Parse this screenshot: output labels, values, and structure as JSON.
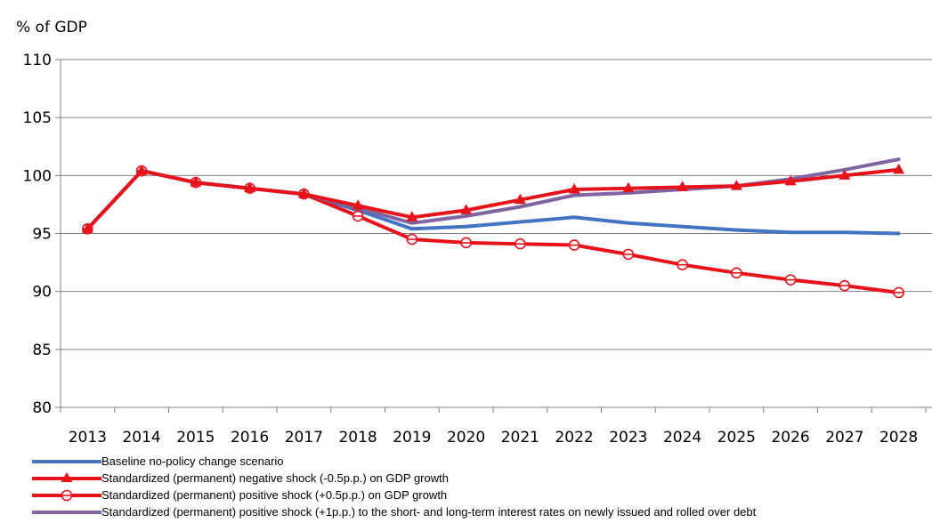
{
  "chart_data": {
    "type": "line",
    "ylabel": "% of GDP",
    "ylim": [
      80,
      110
    ],
    "yticks": [
      "80",
      "85",
      "90",
      "95",
      "100",
      "105",
      "110"
    ],
    "categories": [
      "2013",
      "2014",
      "2015",
      "2016",
      "2017",
      "2018",
      "2019",
      "2020",
      "2021",
      "2022",
      "2023",
      "2024",
      "2025",
      "2026",
      "2027",
      "2028"
    ],
    "grid": "horizontal",
    "legend_position": "bottom",
    "series": [
      {
        "name": "Baseline no-policy change scenario",
        "color": "#4472C4",
        "marker": "none",
        "values": [
          95.4,
          100.4,
          99.4,
          98.9,
          98.4,
          97.0,
          95.4,
          95.6,
          96.0,
          96.4,
          95.9,
          95.6,
          95.3,
          95.1,
          95.1,
          95.0
        ]
      },
      {
        "name": "Standardized (permanent) negative shock (-0.5p.p.) on GDP growth",
        "color": "#E8121B",
        "marker": "triangle",
        "values": [
          95.4,
          100.4,
          99.4,
          98.9,
          98.4,
          97.4,
          96.4,
          97.0,
          97.9,
          98.8,
          98.9,
          99.0,
          99.1,
          99.5,
          100.0,
          100.5
        ]
      },
      {
        "name": "Standardized (permanent) positive shock (+0.5p.p.) on GDP growth",
        "color": "#E8121B",
        "marker": "circle",
        "values": [
          95.4,
          100.4,
          99.4,
          98.9,
          98.4,
          96.5,
          94.5,
          94.2,
          94.1,
          94.0,
          93.2,
          92.3,
          91.6,
          91.0,
          90.5,
          89.9
        ]
      },
      {
        "name": "Standardized (permanent) positive shock (+1p.p.) to the short- and long-term interest rates on newly issued and rolled over debt",
        "color": "#8064A2",
        "marker": "none",
        "values": [
          95.4,
          100.4,
          99.4,
          98.9,
          98.4,
          97.2,
          95.9,
          96.5,
          97.3,
          98.3,
          98.5,
          98.8,
          99.1,
          99.7,
          100.5,
          101.4
        ]
      }
    ]
  }
}
